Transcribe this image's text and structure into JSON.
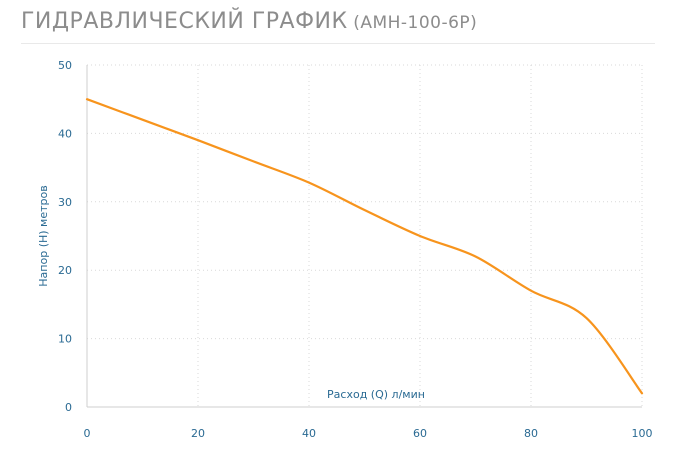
{
  "header": {
    "title": "ГИДРАВЛИЧЕСКИЙ ГРАФИК",
    "model": "(АМН-100-6Р)"
  },
  "chart_data": {
    "type": "line",
    "title": "ГИДРАВЛИЧЕСКИЙ ГРАФИК (АМН-100-6Р)",
    "xlabel": "Расход (Q) л/мин",
    "ylabel": "Напор (H) метров",
    "xlim": [
      0,
      100
    ],
    "ylim": [
      0,
      50
    ],
    "xticks": [
      0,
      20,
      40,
      60,
      80,
      100
    ],
    "yticks": [
      0,
      10,
      20,
      30,
      40,
      50
    ],
    "grid": true,
    "line_color": "#f7941d",
    "x": [
      0,
      10,
      20,
      30,
      40,
      50,
      60,
      70,
      80,
      90,
      100
    ],
    "series": [
      {
        "values": [
          45,
          42,
          39,
          35.9,
          32.8,
          28.8,
          25,
          22,
          17,
          13,
          2
        ]
      }
    ]
  }
}
